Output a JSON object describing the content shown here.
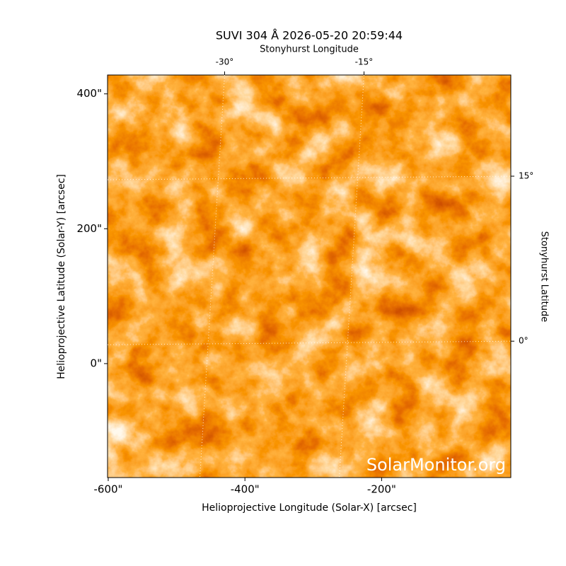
{
  "chart_data": {
    "type": "image",
    "title": "SUVI 304 Å 2026-05-20 20:59:44",
    "x_label": "Helioprojective Longitude (Solar-X) [arcsec]",
    "y_label": "Helioprojective Latitude (Solar-Y) [arcsec]",
    "x2_label": "Stonyhurst Longitude",
    "y2_label": "Stonyhurst Latitude",
    "watermark": "SolarMonitor.org",
    "xlim": [
      -601,
      -11
    ],
    "xticks": [
      {
        "value": -600,
        "label": "-600\""
      },
      {
        "value": -400,
        "label": "-400\""
      },
      {
        "value": -200,
        "label": "-200\""
      }
    ],
    "ylim": [
      -169,
      428
    ],
    "yticks": [
      {
        "value": 0,
        "label": "0\""
      },
      {
        "value": 200,
        "label": "200\""
      },
      {
        "value": 400,
        "label": "400\""
      }
    ],
    "x2lim": [
      -42.6,
      0.8
    ],
    "x2ticks": [
      {
        "value": -30,
        "label": "-30°"
      },
      {
        "value": -15,
        "label": "-15°"
      }
    ],
    "y2lim": [
      -12.4,
      24.2
    ],
    "y2ticks": [
      {
        "value": 0,
        "label": "0°"
      },
      {
        "value": 15,
        "label": "15°"
      }
    ],
    "grid": true
  }
}
